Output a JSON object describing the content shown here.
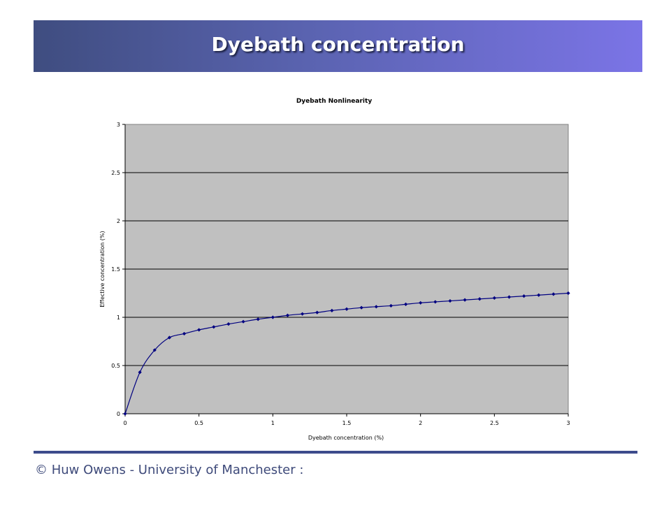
{
  "slide": {
    "title": "Dyebath concentration",
    "footer": "© Huw Owens - University of Manchester :"
  },
  "colors": {
    "banner_start": "#3f4d80",
    "banner_end": "#7b74e6",
    "plot_background": "#c0c0c0",
    "series": "#000080",
    "footer_rule": "#3d4c8c"
  },
  "chart_data": {
    "type": "line",
    "title": "Dyebath Nonlinearity",
    "xlabel": "Dyebath concentration (%)",
    "ylabel": "Effective concentration (%)",
    "xlim": [
      0,
      3
    ],
    "ylim": [
      0,
      3
    ],
    "xticks": [
      "0",
      "0.5",
      "1",
      "1.5",
      "2",
      "2.5",
      "3"
    ],
    "yticks": [
      "0",
      "0.5",
      "1",
      "1.5",
      "2",
      "2.5",
      "3"
    ],
    "grid": "horizontal",
    "legend": "none",
    "x": [
      0,
      0.1,
      0.2,
      0.3,
      0.4,
      0.5,
      0.6,
      0.7,
      0.8,
      0.9,
      1.0,
      1.1,
      1.2,
      1.3,
      1.4,
      1.5,
      1.6,
      1.7,
      1.8,
      1.9,
      2.0,
      2.1,
      2.2,
      2.3,
      2.4,
      2.5,
      2.6,
      2.7,
      2.8,
      2.9,
      3.0
    ],
    "y": [
      0,
      0.43,
      0.66,
      0.79,
      0.83,
      0.87,
      0.9,
      0.93,
      0.955,
      0.98,
      1.0,
      1.02,
      1.035,
      1.05,
      1.07,
      1.085,
      1.1,
      1.11,
      1.12,
      1.135,
      1.15,
      1.16,
      1.17,
      1.18,
      1.19,
      1.2,
      1.21,
      1.22,
      1.23,
      1.24,
      1.25
    ]
  }
}
